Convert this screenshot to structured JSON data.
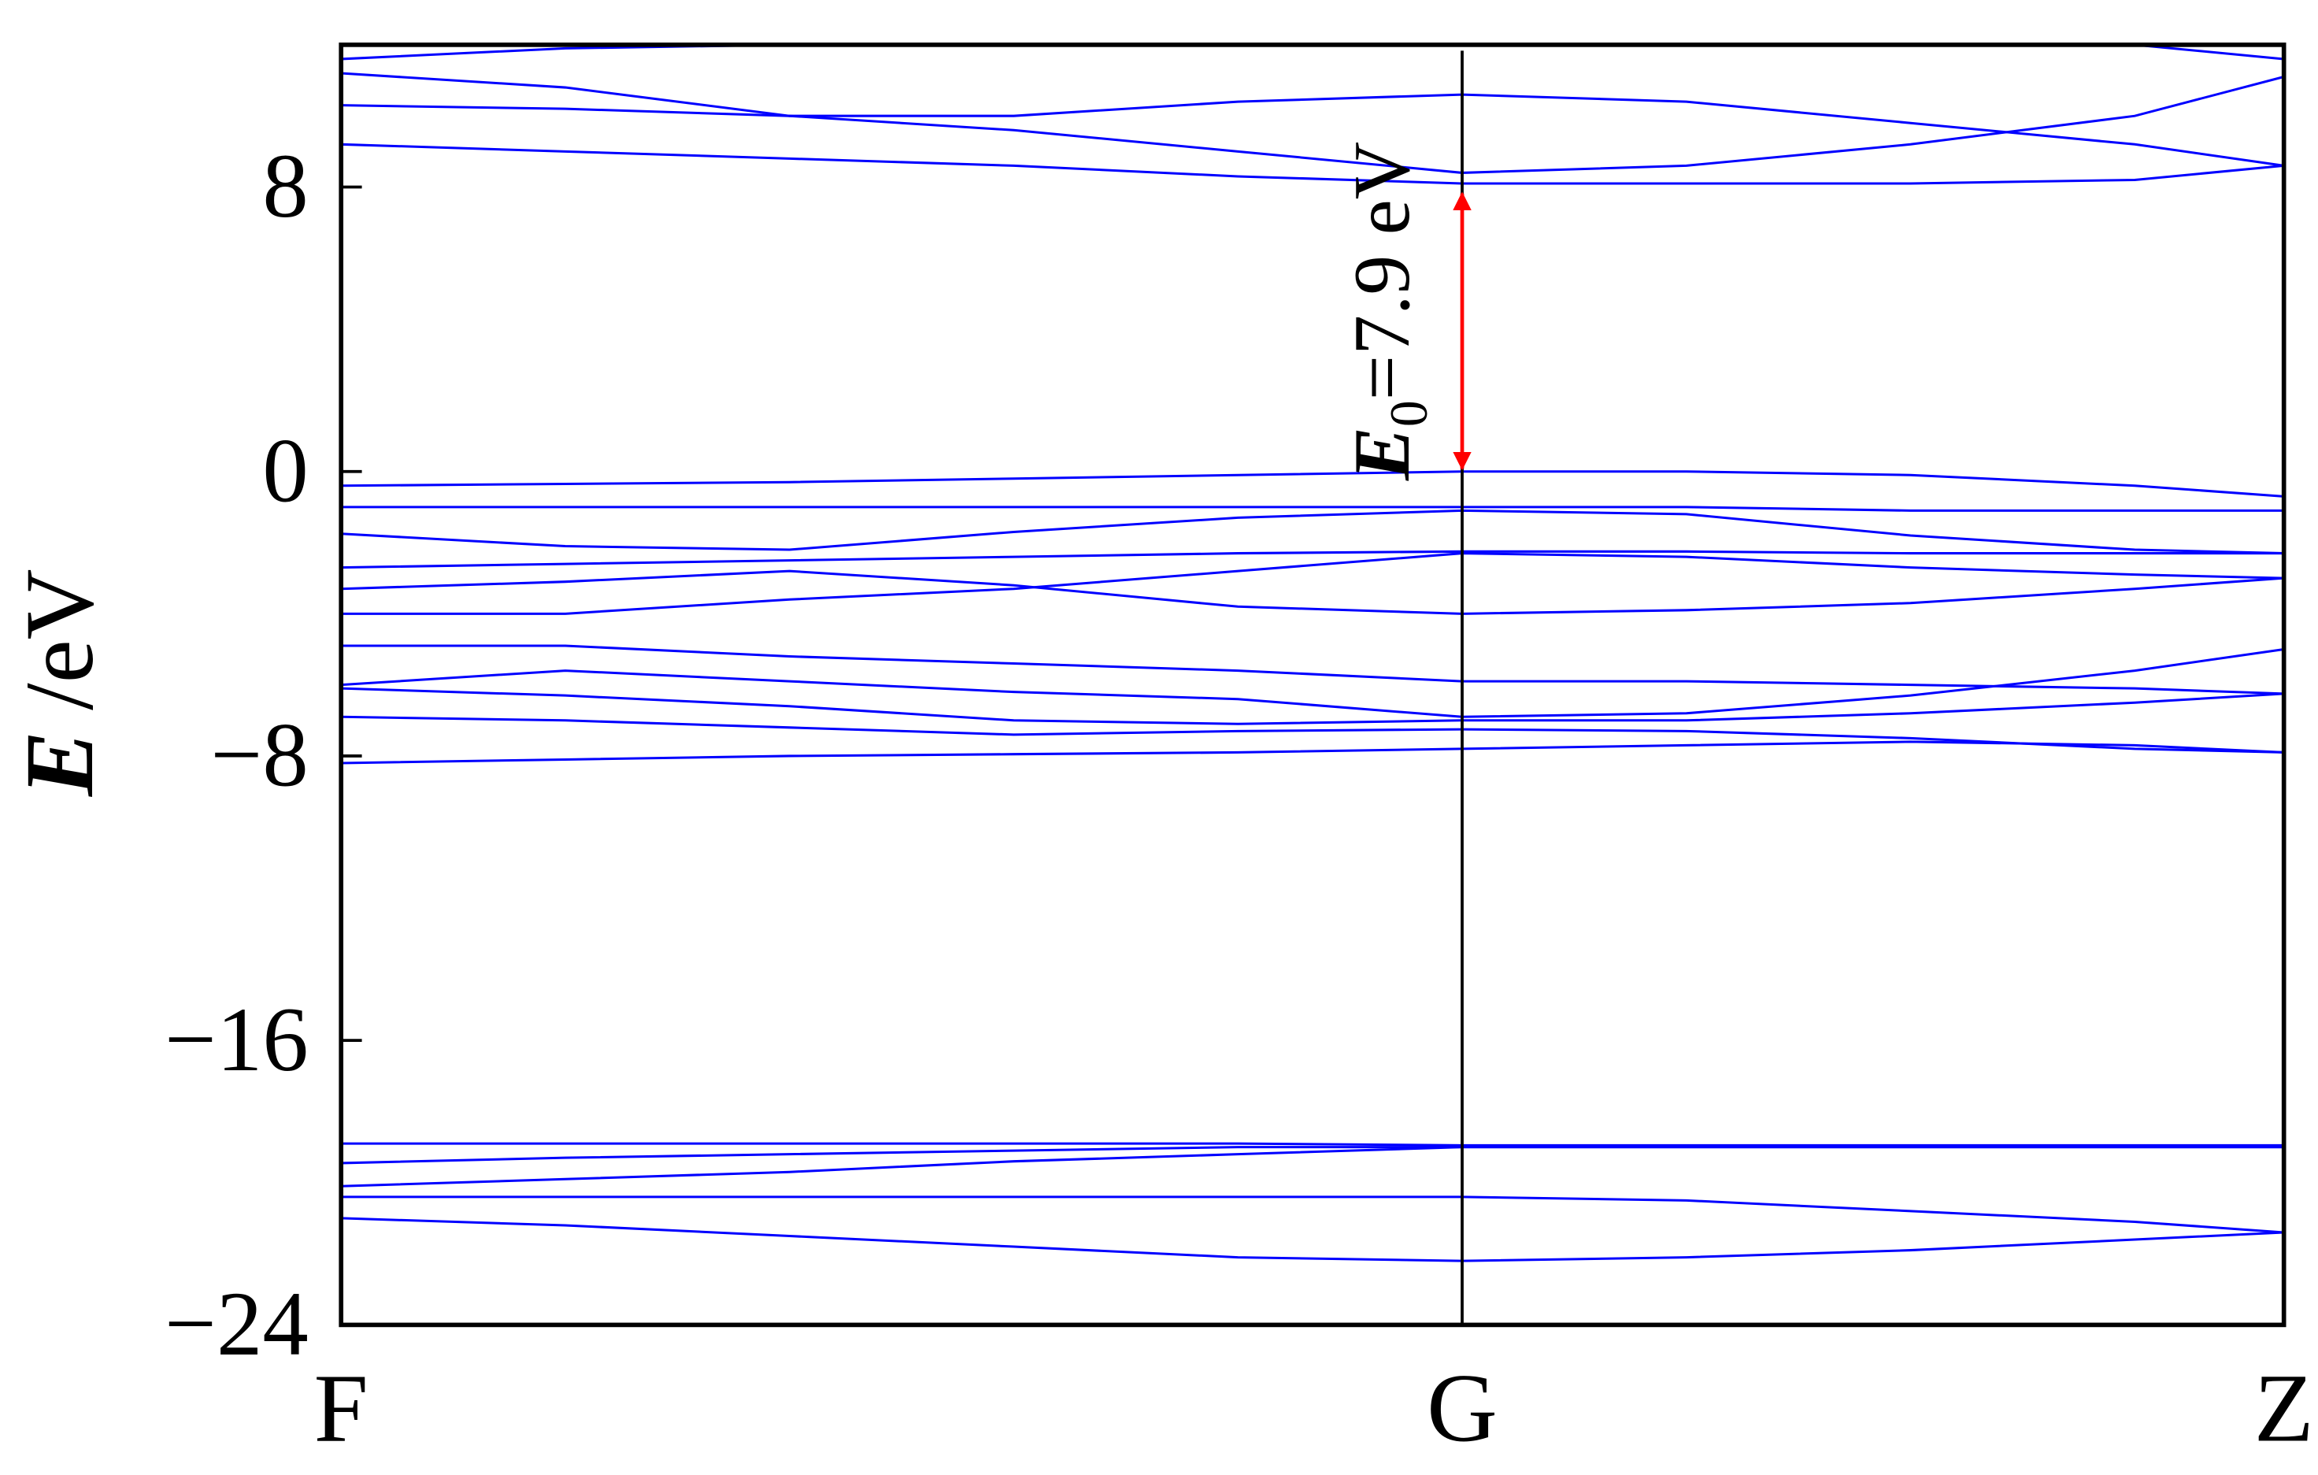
{
  "chart_data": {
    "type": "line",
    "ylabel": {
      "symbol": "E",
      "unit": "/eV"
    },
    "x": [
      0,
      0.2,
      0.4,
      0.6,
      0.8,
      1,
      1.2,
      1.4,
      1.6,
      1.733
    ],
    "xlim": [
      0,
      1.733
    ],
    "xticks": [
      {
        "value": 0,
        "label": "F"
      },
      {
        "value": 1,
        "label": "G"
      },
      {
        "value": 1.733,
        "label": "Z"
      }
    ],
    "ylim": [
      -24,
      12
    ],
    "yticks": [
      -24,
      -16,
      -8,
      0,
      8
    ],
    "color": "#0000ff",
    "series": [
      {
        "values": [
          9.2,
          9.0,
          8.8,
          8.6,
          8.3,
          8.1,
          8.1,
          8.1,
          8.2,
          8.6
        ]
      },
      {
        "values": [
          10.3,
          10.2,
          10.0,
          9.6,
          9.0,
          8.4,
          8.6,
          9.2,
          10.0,
          11.1
        ]
      },
      {
        "values": [
          11.2,
          10.8,
          10.0,
          10.0,
          10.4,
          10.6,
          10.4,
          9.8,
          9.2,
          8.6
        ]
      },
      {
        "values": [
          11.6,
          11.9,
          12,
          12,
          12,
          12,
          12,
          12,
          12,
          11.6
        ]
      },
      {
        "values": [
          -0.4,
          -0.35,
          -0.3,
          -0.2,
          -0.1,
          0,
          0,
          -0.1,
          -0.4,
          -0.7
        ]
      },
      {
        "values": [
          -1.0,
          -1.0,
          -1.0,
          -1.0,
          -1.0,
          -1.0,
          -1.0,
          -1.1,
          -1.1,
          -1.1
        ]
      },
      {
        "values": [
          -1.75,
          -2.1,
          -2.2,
          -1.7,
          -1.3,
          -1.1,
          -1.2,
          -1.8,
          -2.2,
          -2.3
        ]
      },
      {
        "values": [
          -2.7,
          -2.6,
          -2.5,
          -2.4,
          -2.3,
          -2.25,
          -2.25,
          -2.3,
          -2.3,
          -2.3
        ]
      },
      {
        "values": [
          -3.3,
          -3.1,
          -2.8,
          -3.2,
          -3.8,
          -4.0,
          -3.9,
          -3.7,
          -3.3,
          -3.0
        ]
      },
      {
        "values": [
          -4.0,
          -4.0,
          -3.6,
          -3.3,
          -2.8,
          -2.3,
          -2.4,
          -2.7,
          -2.9,
          -3.0
        ]
      },
      {
        "values": [
          -4.9,
          -4.9,
          -5.2,
          -5.4,
          -5.6,
          -5.9,
          -5.9,
          -6.0,
          -6.1,
          -6.25
        ]
      },
      {
        "values": [
          -6.0,
          -5.6,
          -5.9,
          -6.2,
          -6.4,
          -6.9,
          -6.8,
          -6.3,
          -5.6,
          -5.0
        ]
      },
      {
        "values": [
          -6.1,
          -6.3,
          -6.6,
          -7.0,
          -7.1,
          -7.0,
          -7.0,
          -6.8,
          -6.5,
          -6.25
        ]
      },
      {
        "values": [
          -6.9,
          -7.0,
          -7.2,
          -7.4,
          -7.3,
          -7.25,
          -7.3,
          -7.5,
          -7.8,
          -7.9
        ]
      },
      {
        "values": [
          -8.2,
          -8.1,
          -8.0,
          -7.95,
          -7.9,
          -7.8,
          -7.7,
          -7.6,
          -7.7,
          -7.9
        ]
      },
      {
        "values": [
          -18.9,
          -18.9,
          -18.9,
          -18.9,
          -18.9,
          -18.95,
          -18.95,
          -18.95,
          -18.95,
          -18.95
        ]
      },
      {
        "values": [
          -19.45,
          -19.3,
          -19.2,
          -19.1,
          -19.0,
          -19.0,
          -19.0,
          -19.0,
          -19.0,
          -19.0
        ]
      },
      {
        "values": [
          -20.1,
          -19.9,
          -19.7,
          -19.4,
          -19.2,
          -19.0,
          -19.0,
          -19.0,
          -19.0,
          -19.0
        ]
      },
      {
        "values": [
          -20.4,
          -20.4,
          -20.4,
          -20.4,
          -20.4,
          -20.4,
          -20.5,
          -20.8,
          -21.1,
          -21.4
        ]
      },
      {
        "values": [
          -21.0,
          -21.2,
          -21.5,
          -21.8,
          -22.1,
          -22.2,
          -22.1,
          -21.9,
          -21.6,
          -21.4
        ]
      }
    ],
    "annotation": {
      "symbol": "E",
      "subscript": "0",
      "text": "=7.9 eV",
      "x": 1,
      "from": 0,
      "to": 7.9,
      "color": "#ff0000"
    }
  }
}
